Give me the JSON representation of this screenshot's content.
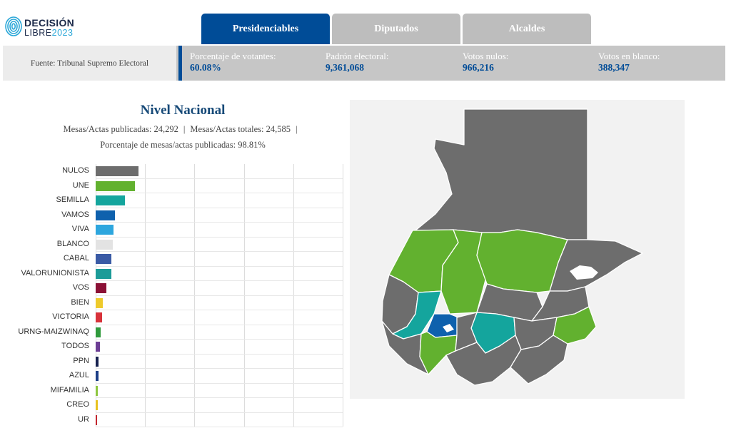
{
  "header": {
    "logo": {
      "line1": "DECISIÓN",
      "line2_word": "LIBRE",
      "line2_year": "2023"
    },
    "tabs": [
      {
        "label": "Presidenciables",
        "active": true
      },
      {
        "label": "Diputados",
        "active": false
      },
      {
        "label": "Alcaldes",
        "active": false
      }
    ]
  },
  "stats": {
    "source": "Fuente: Tribunal Supremo Electoral",
    "items": [
      {
        "label": "Porcentaje de votantes:",
        "value": "60.08%"
      },
      {
        "label": "Padrón electoral:",
        "value": "9,361,068"
      },
      {
        "label": "Votos nulos:",
        "value": "966,216"
      },
      {
        "label": "Votos en blanco:",
        "value": "388,347"
      }
    ]
  },
  "panel": {
    "title": "Nivel Nacional",
    "mesas_publicadas": "Mesas/Actas publicadas: 24,292",
    "mesas_totales": "Mesas/Actas totales: 24,585",
    "separator": "|",
    "porcentaje": "Porcentaje de mesas/actas publicadas: 98.81%"
  },
  "chart_data": {
    "type": "bar",
    "orientation": "horizontal",
    "categories": [
      "NULOS",
      "UNE",
      "SEMILLA",
      "VAMOS",
      "VIVA",
      "BLANCO",
      "CABAL",
      "VALORUNIONISTA",
      "VOS",
      "BIEN",
      "VICTORIA",
      "URNG-MAIZWINAQ",
      "TODOS",
      "PPN",
      "AZUL",
      "MIFAMILIA",
      "CREO",
      "UR"
    ],
    "values": [
      17.4,
      15.9,
      11.8,
      7.9,
      7.1,
      7.0,
      6.5,
      6.5,
      4.2,
      2.8,
      2.5,
      1.9,
      1.6,
      1.1,
      1.1,
      1.0,
      0.8,
      0.6
    ],
    "colors": [
      "#6d6d6d",
      "#62b12f",
      "#14a59d",
      "#0e61ad",
      "#2da6de",
      "#e3e3e3",
      "#3a5aa5",
      "#1c9b98",
      "#8b1136",
      "#eeca2b",
      "#d8323a",
      "#2f9a3c",
      "#6c3d94",
      "#17214f",
      "#1d3f87",
      "#8dc63f",
      "#e8c21f",
      "#c2262e"
    ],
    "xlim": [
      0,
      100
    ],
    "grid": true
  },
  "map": {
    "colors": {
      "gray": "#6d6d6d",
      "green": "#62b12f",
      "teal": "#14a59d",
      "blue": "#0e61ad",
      "background": "#f2f2f2"
    }
  }
}
